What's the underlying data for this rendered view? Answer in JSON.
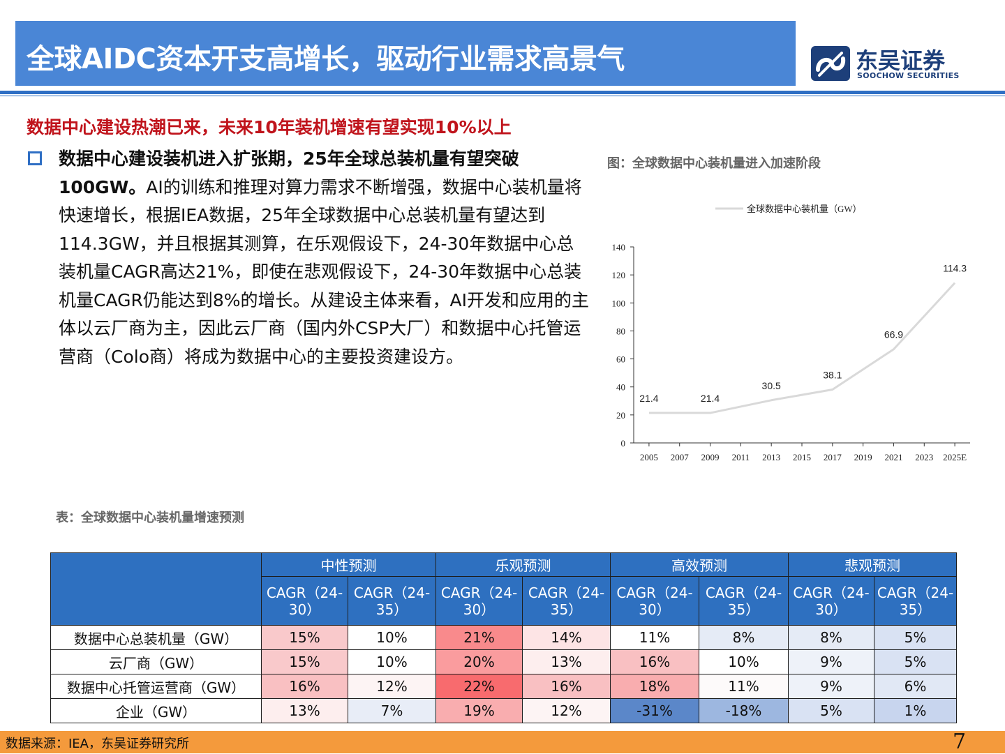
{
  "header": {
    "title": "全球AIDC资本开支高增长，驱动行业需求高景气"
  },
  "logo": {
    "cn": "东吴证券",
    "en": "SOOCHOW SECURITIES"
  },
  "subtitle": "数据中心建设热潮已来，未来10年装机增速有望实现10%以上",
  "paragraph": {
    "bold": "数据中心建设装机进入扩张期，25年全球总装机量有望突破100GW。",
    "body": "AI的训练和推理对算力需求不断增强，数据中心装机量将快速增长，根据IEA数据，25年全球数据中心总装机量有望达到114.3GW，并且根据其测算，在乐观假设下，24-30年数据中心总装机量CAGR高达21%，即使在悲观假设下，24-30年数据中心总装机量CAGR仍能达到8%的增长。从建设主体来看，AI开发和应用的主体以云厂商为主，因此云厂商（国内外CSP大厂）和数据中心托管运营商（Colo商）将成为数据中心的主要投资建设方。"
  },
  "figure_caption": "图：全球数据中心装机量进入加速阶段",
  "chart_data": {
    "type": "line",
    "title": "",
    "xlabel": "",
    "ylabel": "",
    "legend": {
      "position": "top-center"
    },
    "series": [
      {
        "name": "全球数据中心装机量（GW）",
        "color": "#d9d9d9",
        "points": [
          {
            "x": 2005,
            "y": 21.4
          },
          {
            "x": 2009,
            "y": 21.4
          },
          {
            "x": 2013,
            "y": 30.5
          },
          {
            "x": 2017,
            "y": 38.1
          },
          {
            "x": 2021,
            "y": 66.9
          },
          {
            "x": 2025,
            "y": 114.3
          }
        ],
        "labels": [
          "21.4",
          "21.4",
          "30.5",
          "38.1",
          "66.9",
          "114.3"
        ]
      }
    ],
    "x_ticks": [
      {
        "x": 2005,
        "label": "2005"
      },
      {
        "x": 2007,
        "label": "2007"
      },
      {
        "x": 2009,
        "label": "2009"
      },
      {
        "x": 2011,
        "label": "2011"
      },
      {
        "x": 2013,
        "label": "2013"
      },
      {
        "x": 2015,
        "label": "2015"
      },
      {
        "x": 2017,
        "label": "2017"
      },
      {
        "x": 2019,
        "label": "2019"
      },
      {
        "x": 2021,
        "label": "2021"
      },
      {
        "x": 2023,
        "label": "2023"
      },
      {
        "x": 2025,
        "label": "2025E"
      }
    ],
    "xlim": [
      2004,
      2026
    ],
    "ylim": [
      0,
      140
    ],
    "y_ticks": [
      0,
      20,
      40,
      60,
      80,
      100,
      120,
      140
    ],
    "grid": false
  },
  "table_caption": "表：全球数据中心装机量增速预测",
  "table": {
    "groups": [
      "中性预测",
      "乐观预测",
      "高效预测",
      "悲观预测"
    ],
    "subheaders": [
      "CAGR（24-30）",
      "CAGR（24-35）",
      "CAGR（24-30）",
      "CAGR（24-35）",
      "CAGR（24-30）",
      "CAGR（24-35）",
      "CAGR（24-30）",
      "CAGR（24-35）"
    ],
    "rows": [
      {
        "label": "数据中心总装机量（GW）",
        "cells": [
          "15%",
          "10%",
          "21%",
          "14%",
          "11%",
          "8%",
          "8%",
          "5%"
        ],
        "colors": [
          "#f9c9cb",
          "#ffffff",
          "#f98a8c",
          "#fde4e5",
          "#ffffff",
          "#e5ebf6",
          "#e5ebf6",
          "#d9e2f3"
        ]
      },
      {
        "label": "云厂商（GW）",
        "cells": [
          "15%",
          "10%",
          "20%",
          "13%",
          "16%",
          "10%",
          "9%",
          "5%"
        ],
        "colors": [
          "#f9c9cb",
          "#ffffff",
          "#fa9c9e",
          "#fdeeee",
          "#f9c0c2",
          "#ffffff",
          "#eef2f9",
          "#d9e2f3"
        ]
      },
      {
        "label": "数据中心托管运营商（GW）",
        "cells": [
          "16%",
          "12%",
          "22%",
          "16%",
          "18%",
          "11%",
          "9%",
          "6%"
        ],
        "colors": [
          "#f9c0c2",
          "#fdf4f4",
          "#f86b6e",
          "#f9c0c2",
          "#f9adaf",
          "#fdfafa",
          "#eef2f9",
          "#e1e8f5"
        ]
      },
      {
        "label": "企业（GW）",
        "cells": [
          "13%",
          "7%",
          "19%",
          "12%",
          "-31%",
          "-18%",
          "5%",
          "1%"
        ],
        "colors": [
          "#fdeeee",
          "#e8edf7",
          "#f9adaf",
          "#fdf4f4",
          "#5b87c9",
          "#9db7e0",
          "#d9e2f3",
          "#c8d5ee"
        ]
      }
    ]
  },
  "footer": {
    "source": "数据来源：IEA，东吴证券研究所",
    "page": "7"
  }
}
